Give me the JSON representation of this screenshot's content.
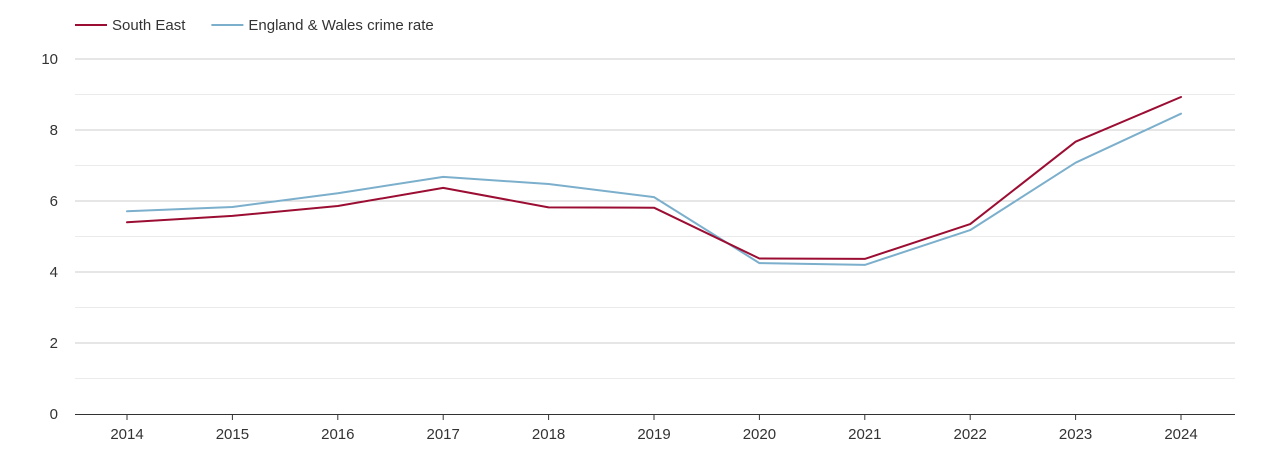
{
  "chart_data": {
    "type": "line",
    "title": "",
    "xlabel": "",
    "ylabel": "",
    "x": [
      "2014",
      "2015",
      "2016",
      "2017",
      "2018",
      "2019",
      "2020",
      "2021",
      "2022",
      "2023",
      "2024"
    ],
    "ylim": [
      0,
      10
    ],
    "yticks": [
      "0",
      "2",
      "4",
      "6",
      "8",
      "10"
    ],
    "grid": true,
    "legend_position": "top-left",
    "series": [
      {
        "name": "South East",
        "color": "#9b0d32",
        "values": [
          5.4,
          5.58,
          5.86,
          6.37,
          5.82,
          5.81,
          4.38,
          4.37,
          5.35,
          7.67,
          8.93
        ]
      },
      {
        "name": "England & Wales crime rate",
        "color": "#7bafcc",
        "values": [
          5.71,
          5.83,
          6.22,
          6.68,
          6.48,
          6.11,
          4.25,
          4.2,
          5.18,
          7.08,
          8.46
        ]
      }
    ]
  }
}
